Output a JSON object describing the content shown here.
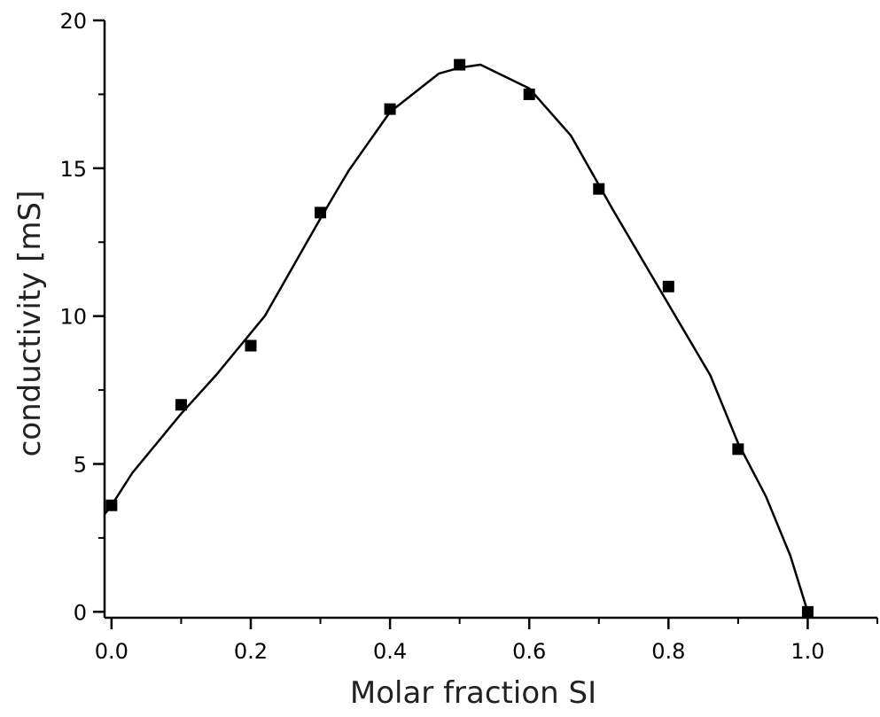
{
  "chart_data": {
    "type": "scatter",
    "title": "",
    "xlabel": "Molar fraction SI",
    "ylabel": "conductivity [mS]",
    "xlim": [
      -0.01,
      1.1
    ],
    "ylim": [
      -0.2,
      20
    ],
    "x_ticks": [
      0.0,
      0.2,
      0.4,
      0.6,
      0.8,
      1.0
    ],
    "x_tick_labels": [
      "0.0",
      "0.2",
      "0.4",
      "0.6",
      "0.8",
      "1.0"
    ],
    "x_minor_ticks": [
      0.1,
      0.3,
      0.5,
      0.7,
      0.9,
      1.1
    ],
    "y_ticks": [
      0,
      5,
      10,
      15,
      20
    ],
    "y_tick_labels": [
      "0",
      "5",
      "10",
      "15",
      "20"
    ],
    "y_minor_ticks": [
      2.5,
      7.5,
      12.5,
      17.5
    ],
    "grid": false,
    "series": [
      {
        "kind": "markers",
        "marker": "square",
        "x": [
          0.0,
          0.1,
          0.2,
          0.3,
          0.4,
          0.5,
          0.6,
          0.7,
          0.8,
          0.9,
          1.0
        ],
        "y": [
          3.6,
          7.0,
          9.0,
          13.5,
          17.0,
          18.5,
          17.5,
          14.3,
          11.0,
          5.5,
          0.0
        ]
      },
      {
        "kind": "line",
        "x": [
          -0.01,
          0.0,
          0.03,
          0.1,
          0.15,
          0.22,
          0.3,
          0.34,
          0.4,
          0.47,
          0.5,
          0.53,
          0.6,
          0.66,
          0.72,
          0.8,
          0.86,
          0.9,
          0.94,
          0.975,
          1.0
        ],
        "y": [
          3.3,
          3.6,
          4.7,
          6.7,
          8.0,
          10.0,
          13.3,
          14.9,
          16.9,
          18.2,
          18.4,
          18.5,
          17.7,
          16.1,
          13.6,
          10.4,
          8.0,
          5.7,
          3.9,
          1.9,
          0.0
        ]
      }
    ]
  }
}
